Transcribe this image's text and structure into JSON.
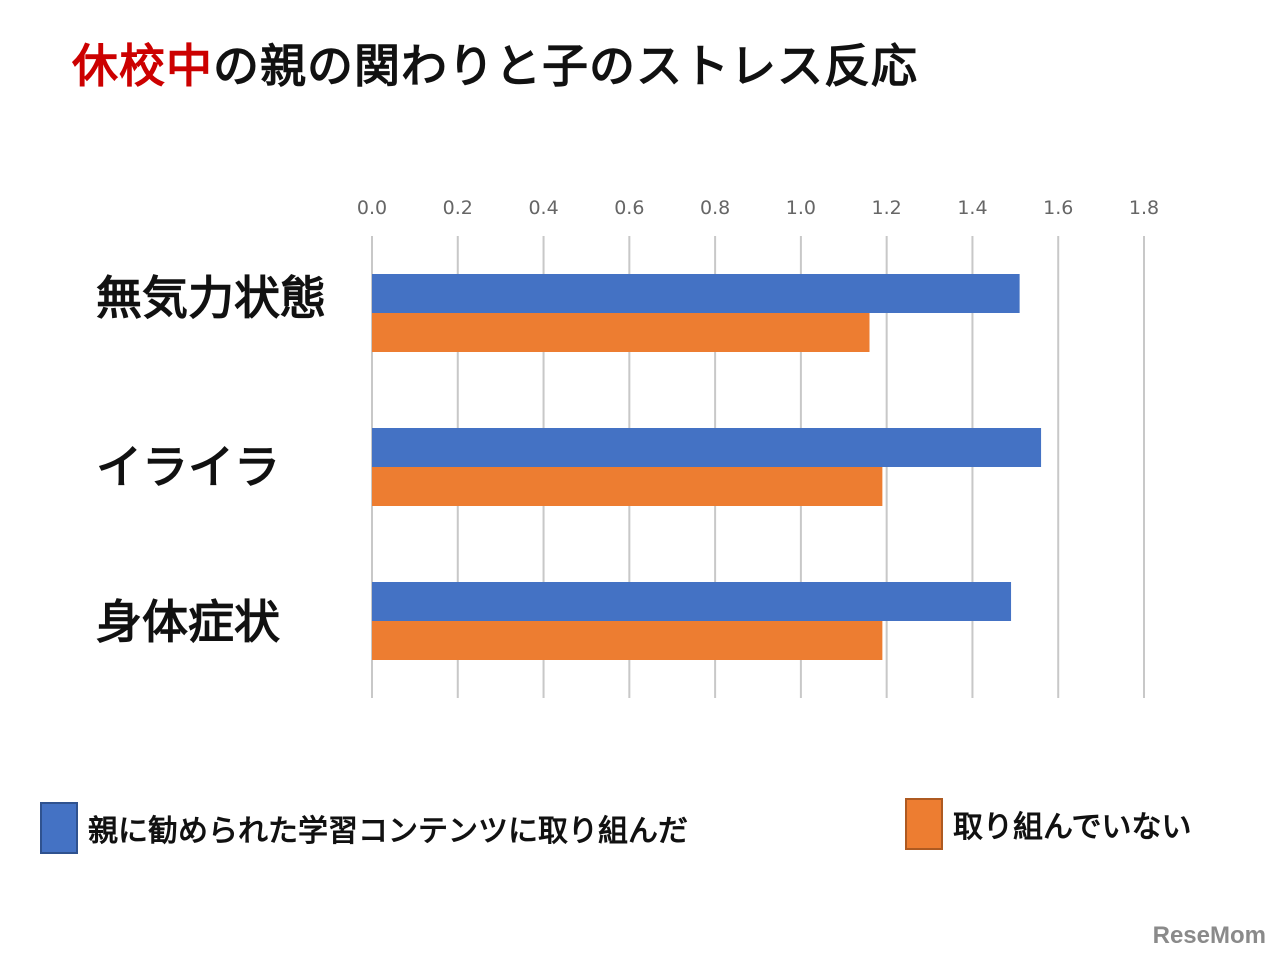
{
  "title": {
    "highlight": "休校中",
    "rest": "の親の関わりと子のストレス反応"
  },
  "chart_data": {
    "type": "bar",
    "orientation": "horizontal",
    "categories": [
      "無気力状態",
      "イライラ",
      "身体症状"
    ],
    "series": [
      {
        "name": "親に勧められた学習コンテンツに取り組んだ",
        "color": "#4472C4",
        "values": [
          1.51,
          1.56,
          1.49
        ]
      },
      {
        "name": "取り組んでいない",
        "color": "#ED7D31",
        "values": [
          1.16,
          1.19,
          1.19
        ]
      }
    ],
    "xlim": [
      0,
      1.8
    ],
    "ticks": [
      "0.0",
      "0.2",
      "0.4",
      "0.6",
      "0.8",
      "1.0",
      "1.2",
      "1.4",
      "1.6",
      "1.8"
    ],
    "grid": true,
    "legend_position": "bottom"
  },
  "watermark": "ReseMom"
}
